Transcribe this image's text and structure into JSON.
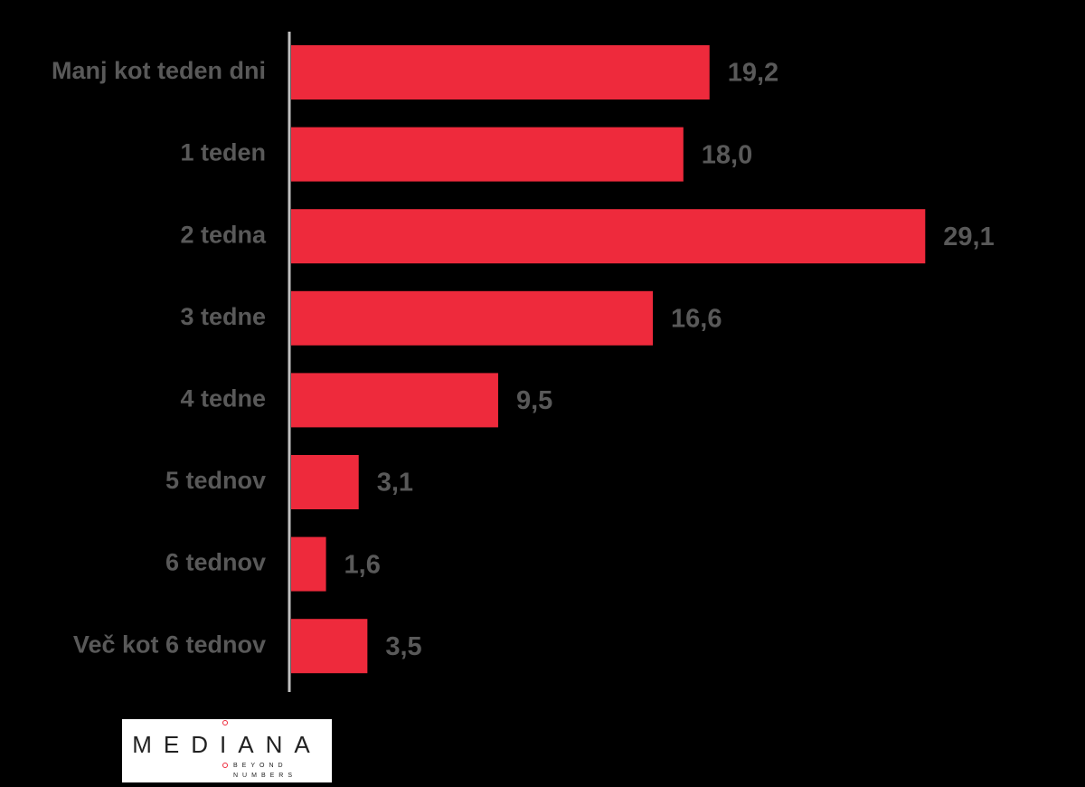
{
  "chart_data": {
    "type": "bar",
    "orientation": "horizontal",
    "categories": [
      "Manj kot teden dni",
      "1 teden",
      "2 tedna",
      "3 tedne",
      "4 tedne",
      "5 tednov",
      "6 tednov",
      "Več kot 6 tednov"
    ],
    "values": [
      19.2,
      18.0,
      29.1,
      16.6,
      9.5,
      3.1,
      1.6,
      3.5
    ],
    "value_labels": [
      "19,2",
      "18,0",
      "29,1",
      "16,6",
      "9,5",
      "3,1",
      "1,6",
      "3,5"
    ],
    "color": "#ee2a3c"
  },
  "logo": {
    "name": "MEDIANA",
    "tagline": [
      "BEYOND",
      "NUMBERS"
    ]
  }
}
